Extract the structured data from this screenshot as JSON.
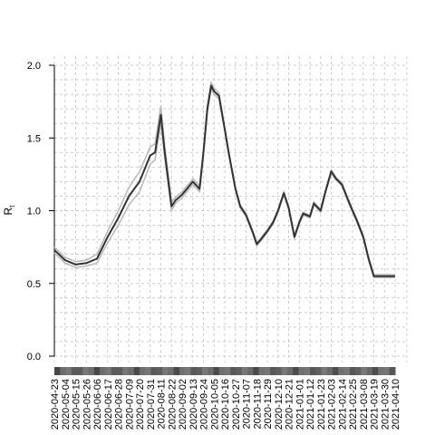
{
  "chart_data": {
    "type": "line",
    "ylabel": "R",
    "ylabel_subscript": "t",
    "ylim": [
      0.0,
      2.0
    ],
    "yticks": [
      "0.0",
      "0.5",
      "1.0",
      "1.5",
      "2.0"
    ],
    "xticks": [
      "2020-04-23",
      "2020-05-04",
      "2020-05-15",
      "2020-05-26",
      "2020-06-06",
      "2020-06-17",
      "2020-06-28",
      "2020-07-09",
      "2020-07-20",
      "2020-07-31",
      "2020-08-11",
      "2020-08-22",
      "2020-09-02",
      "2020-09-13",
      "2020-09-24",
      "2020-10-05",
      "2020-10-16",
      "2020-10-27",
      "2020-11-07",
      "2020-11-18",
      "2020-11-29",
      "2020-12-10",
      "2020-12-21",
      "2021-01-01",
      "2021-01-12",
      "2021-01-23",
      "2021-02-03",
      "2021-02-14",
      "2021-02-25",
      "2021-03-08",
      "2021-03-19",
      "2021-03-30",
      "2021-04-10"
    ],
    "grid": true,
    "series_style": "mean line with upper and lower credible interval lines",
    "series": [
      {
        "x": [
          "2020-04-23",
          "2020-05-04",
          "2020-05-15",
          "2020-05-26",
          "2020-06-06",
          "2020-06-17",
          "2020-06-28",
          "2020-07-09",
          "2020-07-20",
          "2020-07-31",
          "2020-08-05",
          "2020-08-11",
          "2020-08-15",
          "2020-08-22",
          "2020-08-26",
          "2020-09-02",
          "2020-09-13",
          "2020-09-20",
          "2020-09-24",
          "2020-09-28",
          "2020-10-02",
          "2020-10-05",
          "2020-10-10",
          "2020-10-16",
          "2020-10-20",
          "2020-10-27",
          "2020-11-01",
          "2020-11-07",
          "2020-11-14",
          "2020-11-18",
          "2020-11-22",
          "2020-11-29",
          "2020-12-05",
          "2020-12-10",
          "2020-12-16",
          "2020-12-21",
          "2020-12-27",
          "2021-01-01",
          "2021-01-05",
          "2021-01-12",
          "2021-01-16",
          "2021-01-23",
          "2021-01-28",
          "2021-02-03",
          "2021-02-08",
          "2021-02-14",
          "2021-02-20",
          "2021-02-25",
          "2021-03-01",
          "2021-03-08",
          "2021-03-14",
          "2021-03-19",
          "2021-03-25",
          "2021-03-30",
          "2021-04-05",
          "2021-04-10"
        ],
        "mean": [
          0.73,
          0.66,
          0.63,
          0.64,
          0.67,
          0.82,
          0.95,
          1.1,
          1.2,
          1.38,
          1.4,
          1.66,
          1.4,
          1.03,
          1.07,
          1.11,
          1.2,
          1.15,
          1.4,
          1.7,
          1.86,
          1.82,
          1.79,
          1.56,
          1.4,
          1.15,
          1.03,
          0.97,
          0.85,
          0.77,
          0.8,
          0.86,
          0.92,
          1.0,
          1.12,
          1.02,
          0.82,
          0.92,
          0.98,
          0.96,
          1.05,
          1.0,
          1.13,
          1.27,
          1.22,
          1.18,
          1.08,
          1.0,
          0.94,
          0.82,
          0.66,
          0.55,
          0.55,
          0.55,
          0.55,
          0.55
        ],
        "lower": [
          0.71,
          0.64,
          0.61,
          0.62,
          0.64,
          0.78,
          0.9,
          1.04,
          1.13,
          1.32,
          1.35,
          1.6,
          1.36,
          1.0,
          1.05,
          1.09,
          1.18,
          1.13,
          1.38,
          1.68,
          1.84,
          1.8,
          1.77,
          1.55,
          1.39,
          1.14,
          1.02,
          0.96,
          0.84,
          0.76,
          0.79,
          0.85,
          0.91,
          0.99,
          1.11,
          1.01,
          0.81,
          0.91,
          0.97,
          0.95,
          1.04,
          0.99,
          1.12,
          1.26,
          1.21,
          1.17,
          1.07,
          0.99,
          0.93,
          0.81,
          0.65,
          0.54,
          0.54,
          0.54,
          0.54,
          0.54
        ],
        "upper": [
          0.75,
          0.68,
          0.65,
          0.66,
          0.7,
          0.86,
          1.0,
          1.16,
          1.27,
          1.44,
          1.46,
          1.72,
          1.44,
          1.06,
          1.09,
          1.13,
          1.22,
          1.17,
          1.42,
          1.72,
          1.88,
          1.84,
          1.81,
          1.57,
          1.41,
          1.16,
          1.04,
          0.98,
          0.86,
          0.78,
          0.81,
          0.87,
          0.93,
          1.01,
          1.13,
          1.03,
          0.83,
          0.93,
          0.99,
          0.97,
          1.06,
          1.01,
          1.14,
          1.28,
          1.23,
          1.19,
          1.09,
          1.01,
          0.95,
          0.83,
          0.67,
          0.56,
          0.56,
          0.56,
          0.56,
          0.56
        ]
      }
    ],
    "colors": {
      "mean": "#333333",
      "interval": "#bbbbbb",
      "grid": "#cccccc",
      "axis": "#000000"
    }
  }
}
